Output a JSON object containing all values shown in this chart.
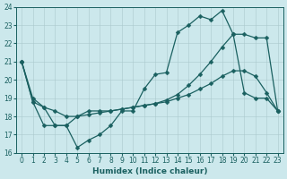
{
  "title": "",
  "xlabel": "Humidex (Indice chaleur)",
  "bg_color": "#cce8ec",
  "grid_color": "#aac8cc",
  "line_color": "#1a6060",
  "xlim": [
    -0.5,
    23.5
  ],
  "ylim": [
    16,
    24
  ],
  "yticks": [
    16,
    17,
    18,
    19,
    20,
    21,
    22,
    23,
    24
  ],
  "xticks": [
    0,
    1,
    2,
    3,
    4,
    5,
    6,
    7,
    8,
    9,
    10,
    11,
    12,
    13,
    14,
    15,
    16,
    17,
    18,
    19,
    20,
    21,
    22,
    23
  ],
  "series": [
    {
      "x": [
        0,
        1,
        2,
        3,
        4,
        5,
        6,
        7,
        8,
        9,
        10,
        11,
        12,
        13,
        14,
        15,
        16,
        17,
        18,
        19,
        20,
        21,
        22,
        23
      ],
      "y": [
        21.0,
        19.0,
        18.5,
        17.5,
        17.5,
        16.3,
        16.7,
        17.0,
        17.5,
        18.3,
        18.3,
        19.5,
        20.3,
        20.4,
        22.6,
        23.0,
        23.5,
        23.3,
        23.8,
        22.5,
        19.3,
        19.0,
        19.0,
        18.3
      ]
    },
    {
      "x": [
        0,
        1,
        2,
        3,
        4,
        5,
        6,
        7,
        8,
        9,
        10,
        11,
        12,
        13,
        14,
        15,
        16,
        17,
        18,
        19,
        20,
        21,
        22,
        23
      ],
      "y": [
        21.0,
        18.8,
        18.5,
        18.3,
        18.0,
        18.0,
        18.1,
        18.2,
        18.3,
        18.4,
        18.5,
        18.6,
        18.7,
        18.8,
        19.0,
        19.2,
        19.5,
        19.8,
        20.2,
        20.5,
        20.5,
        20.2,
        19.3,
        18.3
      ]
    },
    {
      "x": [
        0,
        1,
        2,
        3,
        4,
        5,
        6,
        7,
        8,
        9,
        10,
        11,
        12,
        13,
        14,
        15,
        16,
        17,
        18,
        19,
        20,
        21,
        22,
        23
      ],
      "y": [
        21.0,
        18.8,
        17.5,
        17.5,
        17.5,
        18.0,
        18.3,
        18.3,
        18.3,
        18.4,
        18.5,
        18.6,
        18.7,
        18.9,
        19.2,
        19.7,
        20.3,
        21.0,
        21.8,
        22.5,
        22.5,
        22.3,
        22.3,
        18.3
      ]
    }
  ],
  "markersize": 2.5,
  "linewidth": 0.9,
  "tick_fontsize": 5.5,
  "xlabel_fontsize": 6.5
}
